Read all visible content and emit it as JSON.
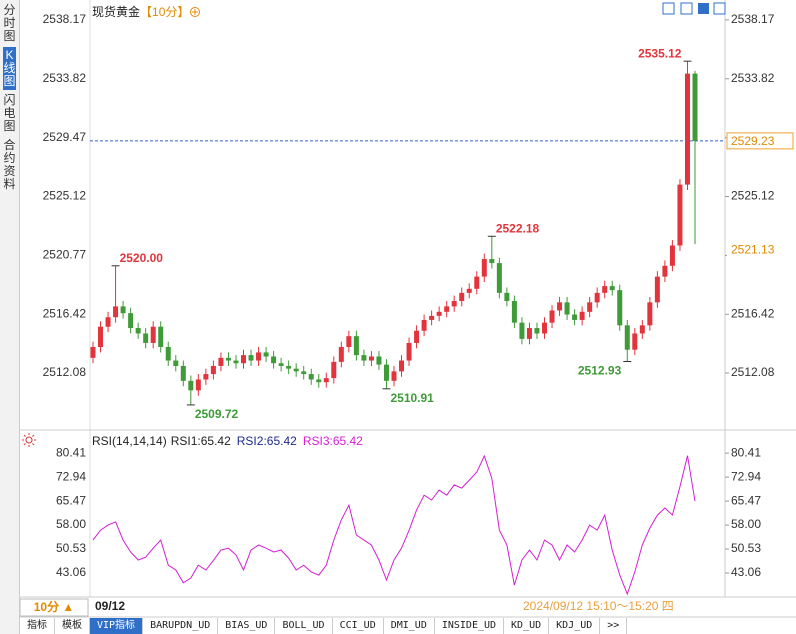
{
  "ui": {
    "side_tabs": [
      "分时图",
      "K线图",
      "闪电图",
      "合约资料"
    ],
    "active_side_tab": 1,
    "bottom_tabs": [
      "指标",
      "模板",
      "VIP指标",
      "BARUPDN_UD",
      "BIAS_UD",
      "BOLL_UD",
      "CCI_UD",
      "DMI_UD",
      "INSIDE_UD",
      "KD_UD",
      "KDJ_UD",
      ">>"
    ],
    "active_bottom_tab": 2,
    "period": "10分 ▲",
    "date": "09/12",
    "time_range": "2024/09/12 15:10～15:20 四"
  },
  "chart_data": [
    {
      "type": "candlestick",
      "title": "现货黄金",
      "subtitle": "【10分】",
      "colors": {
        "up": "#e2343c",
        "down": "#3f9a38"
      },
      "ylim": [
        2508.2,
        2538.9
      ],
      "yticks": [
        2538.17,
        2533.82,
        2529.47,
        2525.12,
        2520.77,
        2516.42,
        2512.08
      ],
      "last_price": 2529.23,
      "ref_price": 2521.13,
      "annotations": [
        {
          "text": "2520.00",
          "value": 2520
        },
        {
          "text": "2509.72",
          "value": 2509.72
        },
        {
          "text": "2510.91",
          "value": 2510.91
        },
        {
          "text": "2522.18",
          "value": 2522.18
        },
        {
          "text": "2512.93",
          "value": 2512.93
        },
        {
          "text": "2535.12",
          "value": 2535.12
        }
      ],
      "open": [
        2513.2,
        2514.0,
        2515.5,
        2516.2,
        2517.0,
        2516.5,
        2515.4,
        2515.0,
        2514.3,
        2515.5,
        2514.0,
        2513.0,
        2512.6,
        2511.5,
        2510.8,
        2511.6,
        2512.0,
        2512.6,
        2513.2,
        2513.0,
        2512.8,
        2513.4,
        2513.0,
        2513.6,
        2513.3,
        2512.8,
        2512.6,
        2512.4,
        2512.2,
        2512.0,
        2511.6,
        2511.4,
        2511.7,
        2512.9,
        2514.0,
        2514.8,
        2513.4,
        2513.0,
        2513.3,
        2512.7,
        2511.5,
        2512.2,
        2513.0,
        2514.3,
        2515.2,
        2516.0,
        2516.3,
        2516.6,
        2517.0,
        2517.4,
        2518.0,
        2518.3,
        2519.2,
        2520.5,
        2520.2,
        2518.0,
        2517.4,
        2515.8,
        2514.6,
        2515.4,
        2515.0,
        2515.8,
        2516.7,
        2517.3,
        2516.4,
        2516.0,
        2516.6,
        2517.3,
        2518.0,
        2518.5,
        2518.2,
        2515.6,
        2513.8,
        2515.0,
        2515.6,
        2517.3,
        2519.2,
        2520.0,
        2521.5,
        2526.0,
        2534.2
      ],
      "high": [
        2514.4,
        2515.9,
        2516.6,
        2520.0,
        2517.4,
        2516.9,
        2515.8,
        2515.4,
        2515.9,
        2515.9,
        2514.4,
        2513.4,
        2513.0,
        2511.9,
        2512.0,
        2512.4,
        2513.0,
        2513.6,
        2513.6,
        2513.4,
        2513.8,
        2513.8,
        2514.0,
        2514.0,
        2513.7,
        2513.2,
        2513.0,
        2512.8,
        2512.6,
        2512.4,
        2512.0,
        2512.1,
        2513.3,
        2514.4,
        2515.2,
        2515.2,
        2513.8,
        2513.7,
        2513.7,
        2513.1,
        2512.6,
        2513.4,
        2514.7,
        2515.6,
        2516.4,
        2516.7,
        2517.0,
        2517.4,
        2517.8,
        2518.4,
        2518.7,
        2519.6,
        2520.9,
        2522.18,
        2520.6,
        2518.4,
        2517.8,
        2516.2,
        2515.8,
        2515.8,
        2516.2,
        2517.1,
        2517.7,
        2517.7,
        2516.8,
        2517.0,
        2517.7,
        2518.4,
        2518.9,
        2518.9,
        2518.6,
        2516.0,
        2515.4,
        2516.0,
        2517.7,
        2519.6,
        2520.4,
        2521.9,
        2526.4,
        2535.12,
        2534.4
      ],
      "low": [
        2512.8,
        2513.6,
        2515.1,
        2515.8,
        2516.1,
        2515.0,
        2514.6,
        2513.9,
        2513.9,
        2513.6,
        2512.6,
        2512.2,
        2511.1,
        2509.72,
        2510.4,
        2511.2,
        2511.6,
        2512.2,
        2512.6,
        2512.4,
        2512.4,
        2512.6,
        2512.6,
        2512.9,
        2512.4,
        2512.2,
        2512.0,
        2511.8,
        2511.6,
        2511.2,
        2511.0,
        2511.0,
        2511.3,
        2512.5,
        2513.6,
        2513.0,
        2512.6,
        2512.6,
        2512.3,
        2510.91,
        2511.1,
        2511.8,
        2512.6,
        2513.9,
        2514.8,
        2515.6,
        2515.9,
        2516.2,
        2516.6,
        2517.0,
        2517.6,
        2517.9,
        2518.8,
        2519.8,
        2517.6,
        2517.0,
        2515.4,
        2514.2,
        2514.2,
        2514.6,
        2514.6,
        2515.4,
        2516.3,
        2516.0,
        2515.6,
        2515.6,
        2516.2,
        2516.9,
        2517.6,
        2517.8,
        2515.2,
        2512.93,
        2513.4,
        2514.6,
        2515.2,
        2516.9,
        2518.8,
        2519.6,
        2521.1,
        2525.6,
        2521.6
      ],
      "close": [
        2514.0,
        2515.5,
        2516.2,
        2517.0,
        2516.5,
        2515.4,
        2515.0,
        2514.3,
        2515.5,
        2514.0,
        2513.0,
        2512.6,
        2511.5,
        2510.8,
        2511.6,
        2512.0,
        2512.6,
        2513.2,
        2513.0,
        2512.8,
        2513.4,
        2513.0,
        2513.6,
        2513.3,
        2512.8,
        2512.6,
        2512.4,
        2512.2,
        2512.0,
        2511.6,
        2511.4,
        2511.7,
        2512.9,
        2514.0,
        2514.8,
        2513.4,
        2513.0,
        2513.3,
        2512.7,
        2511.5,
        2512.2,
        2513.0,
        2514.3,
        2515.2,
        2516.0,
        2516.3,
        2516.6,
        2517.0,
        2517.4,
        2518.0,
        2518.3,
        2519.2,
        2520.5,
        2520.2,
        2518.0,
        2517.4,
        2515.8,
        2514.6,
        2515.4,
        2515.0,
        2515.8,
        2516.7,
        2517.3,
        2516.4,
        2516.0,
        2516.6,
        2517.3,
        2518.0,
        2518.5,
        2518.2,
        2515.6,
        2513.8,
        2515.0,
        2515.6,
        2517.3,
        2519.2,
        2520.0,
        2521.5,
        2526.0,
        2534.2,
        2529.23
      ]
    },
    {
      "type": "line",
      "title": "RSI(14,14,14)",
      "legend_items": [
        {
          "text": "RSI1:65.42",
          "color": "#222222"
        },
        {
          "text": "RSI2:65.42",
          "color": "#1c2a8c"
        },
        {
          "text": "RSI3:65.42",
          "color": "#d41fd4"
        }
      ],
      "ylim": [
        35.9,
        84.5
      ],
      "yticks": [
        80.41,
        72.94,
        65.47,
        {
          "value": 58,
          "label": "58.00"
        },
        50.53,
        43.06
      ],
      "series": [
        {
          "color": "#d41fd4",
          "values": [
            53.3,
            56.4,
            58.0,
            59.0,
            53.3,
            49.6,
            47.1,
            48.0,
            50.8,
            53.3,
            45.5,
            44.0,
            40.0,
            41.5,
            45.5,
            44.0,
            47.0,
            50.2,
            50.8,
            48.7,
            44.0,
            50.2,
            51.8,
            50.8,
            49.6,
            50.2,
            47.7,
            44.0,
            45.5,
            43.4,
            42.4,
            45.5,
            53.3,
            59.6,
            64.2,
            54.9,
            53.3,
            51.8,
            47.1,
            40.9,
            47.1,
            50.8,
            56.4,
            62.7,
            67.3,
            65.8,
            68.9,
            67.3,
            70.5,
            69.5,
            72.0,
            74.5,
            79.5,
            72.6,
            56.4,
            51.8,
            39.3,
            47.1,
            50.2,
            47.1,
            53.3,
            51.8,
            47.1,
            51.8,
            49.6,
            53.3,
            58.0,
            56.4,
            61.1,
            50.2,
            42.4,
            36.5,
            43.4,
            51.8,
            57.1,
            61.1,
            63.3,
            61.1,
            70.0,
            79.6,
            65.42
          ]
        }
      ]
    }
  ]
}
